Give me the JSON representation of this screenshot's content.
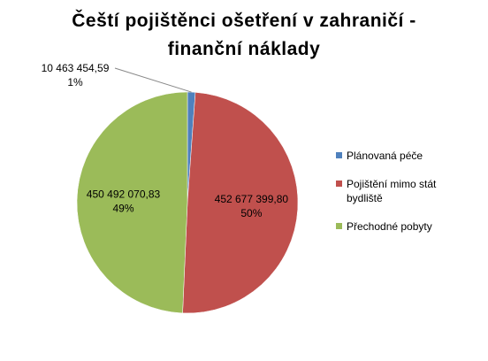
{
  "chart_data": {
    "type": "pie",
    "title": "Čeští pojištěnci ošetření v zahraničí - finanční náklady",
    "categories": [
      "Plánovaná péče",
      "Pojištění mimo stát bydliště",
      "Přechodné pobyty"
    ],
    "values": [
      10463454.59,
      452677399.8,
      450492070.83
    ],
    "value_labels": [
      "10 463 454,59",
      "452 677 399,80",
      "450 492 070,83"
    ],
    "percent_labels": [
      "1%",
      "50%",
      "49%"
    ],
    "colors": [
      "#4f81bd",
      "#c0504d",
      "#9bbb59"
    ],
    "legend": "right"
  }
}
